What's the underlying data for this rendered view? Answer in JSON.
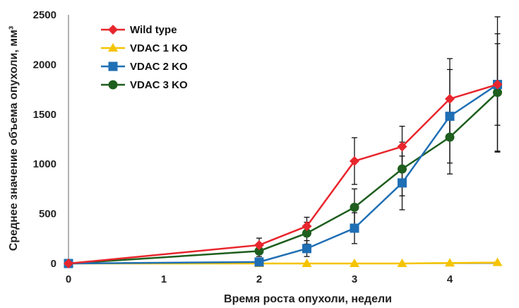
{
  "chart_data": {
    "type": "line",
    "title": "",
    "xlabel": "Время роста опухоли, недели",
    "ylabel": "Среднее значение объема опухоли, мм³",
    "xlim": [
      0,
      4.5
    ],
    "ylim": [
      0,
      2500
    ],
    "x_ticks": [
      0,
      1,
      2,
      3,
      4
    ],
    "y_ticks": [
      0,
      500,
      1000,
      1500,
      2000,
      2500
    ],
    "grid": false,
    "legend_position": "top-left",
    "series": [
      {
        "name": "Wild type",
        "color": "#e8262d",
        "marker": "diamond",
        "x": [
          0,
          2,
          2.5,
          3,
          3.5,
          4,
          4.5
        ],
        "y": [
          0,
          185,
          375,
          1030,
          1175,
          1655,
          1800
        ],
        "err": [
          0,
          70,
          90,
          235,
          205,
          405,
          680
        ]
      },
      {
        "name": "VDAC 1 KO",
        "color": "#f5c400",
        "marker": "triangle",
        "x": [
          0,
          2,
          2.5,
          3,
          3.5,
          4,
          4.5
        ],
        "y": [
          0,
          0,
          0,
          0,
          0,
          5,
          10
        ],
        "err": [
          0,
          0,
          0,
          0,
          0,
          0,
          0
        ]
      },
      {
        "name": "VDAC 2 KO",
        "color": "#1f6fb5",
        "marker": "square",
        "x": [
          0,
          2,
          2.5,
          3,
          3.5,
          4,
          4.5
        ],
        "y": [
          0,
          15,
          150,
          355,
          810,
          1480,
          1800
        ],
        "err": [
          0,
          0,
          80,
          155,
          270,
          470,
          410
        ]
      },
      {
        "name": "VDAC 3 KO",
        "color": "#1e5e1e",
        "marker": "circle",
        "x": [
          0,
          2,
          2.5,
          3,
          3.5,
          4,
          4.5
        ],
        "y": [
          0,
          125,
          305,
          565,
          950,
          1270,
          1720
        ],
        "err": [
          0,
          55,
          110,
          185,
          270,
          370,
          590
        ]
      }
    ]
  }
}
